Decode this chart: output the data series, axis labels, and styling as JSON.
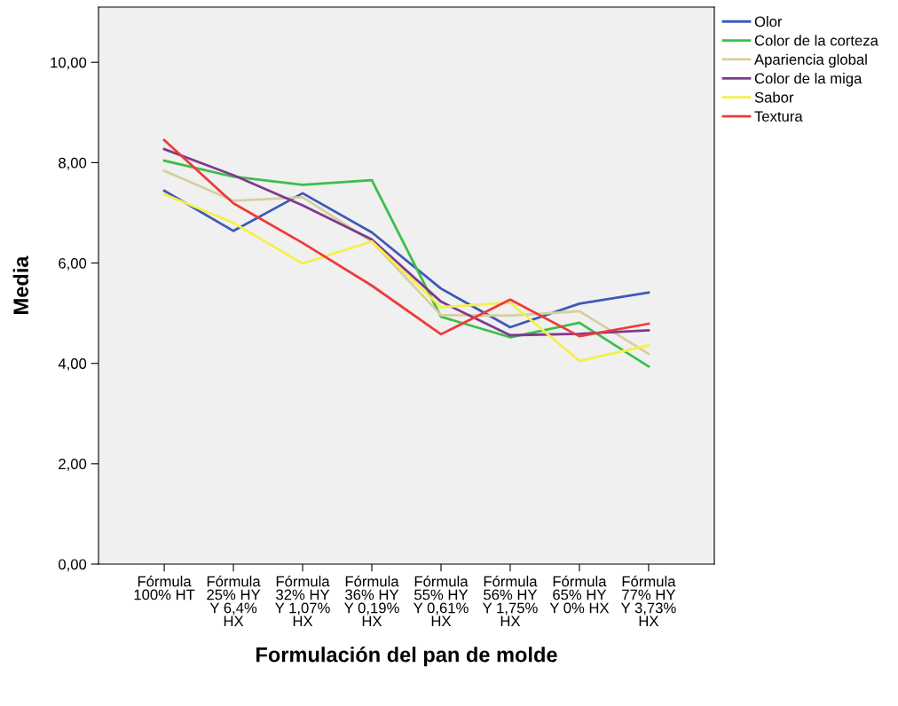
{
  "chart_data": {
    "type": "line",
    "xlabel": "Formulación del pan de molde",
    "ylabel": "Media",
    "categories": [
      "Fórmula\n100% HT",
      "Fórmula\n25% HY\nY 6,4%\nHX",
      "Fórmula\n32% HY\nY 1,07%\nHX",
      "Fórmula\n36% HY\nY 0,19%\nHX",
      "Fórmula\n55% HY\nY 0,61%\nHX",
      "Fórmula\n56% HY\nY 1,75%\nHX",
      "Fórmula\n65% HY\nY 0% HX",
      "Fórmula\n77% HY\nY 3,73%\nHX"
    ],
    "series": [
      {
        "name": "Olor",
        "color": "#3f59b8",
        "values": [
          7.44,
          6.64,
          7.39,
          6.61,
          5.49,
          4.72,
          5.19,
          5.41
        ]
      },
      {
        "name": "Color de la corteza",
        "color": "#3cbe4a",
        "values": [
          8.04,
          7.72,
          7.56,
          7.65,
          4.93,
          4.52,
          4.81,
          3.94
        ]
      },
      {
        "name": "Apariencia global",
        "color": "#d6cf9f",
        "values": [
          7.84,
          7.24,
          7.31,
          6.43,
          4.96,
          4.95,
          5.04,
          4.19
        ]
      },
      {
        "name": "Color de la miga",
        "color": "#7e3a8e",
        "values": [
          8.27,
          7.75,
          7.15,
          6.47,
          5.23,
          4.56,
          4.59,
          4.66
        ]
      },
      {
        "name": "Sabor",
        "color": "#f5f04a",
        "values": [
          7.37,
          6.8,
          5.99,
          6.43,
          5.12,
          5.21,
          4.05,
          4.36
        ]
      },
      {
        "name": "Textura",
        "color": "#f03a3a",
        "values": [
          8.45,
          7.19,
          6.4,
          5.55,
          4.58,
          5.27,
          4.54,
          4.79
        ]
      }
    ],
    "ylim": [
      0,
      11.1
    ],
    "yticks": [
      {
        "value": 0,
        "label": "0,00"
      },
      {
        "value": 2,
        "label": "2,00"
      },
      {
        "value": 4,
        "label": "4,00"
      },
      {
        "value": 6,
        "label": "6,00"
      },
      {
        "value": 8,
        "label": "8,00"
      },
      {
        "value": 10,
        "label": "10,00"
      }
    ],
    "grid": false,
    "legend": "top right",
    "marker": "none",
    "line_style": "solid"
  }
}
